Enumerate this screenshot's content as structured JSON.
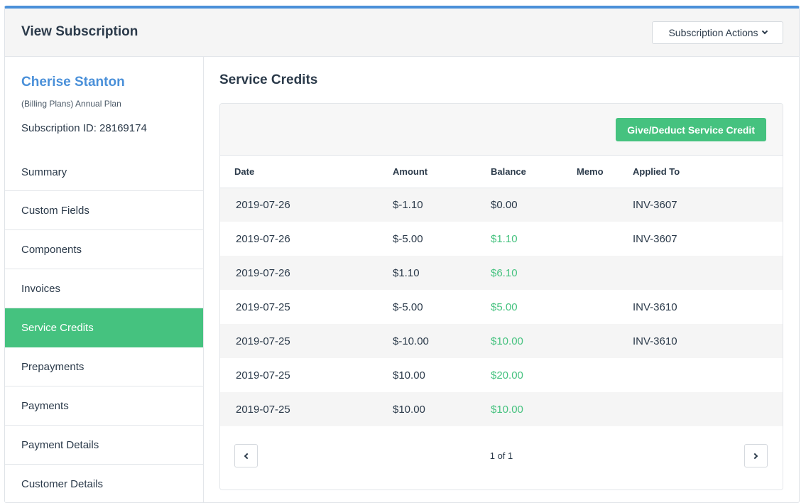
{
  "header": {
    "title": "View Subscription",
    "actions_label": "Subscription Actions"
  },
  "customer": {
    "name": "Cherise Stanton",
    "plan": "(Billing Plans) Annual Plan",
    "subscription_id": "Subscription ID: 28169174"
  },
  "nav": {
    "items": [
      {
        "label": "Summary"
      },
      {
        "label": "Custom Fields"
      },
      {
        "label": "Components"
      },
      {
        "label": "Invoices"
      },
      {
        "label": "Service Credits",
        "active": true
      },
      {
        "label": "Prepayments"
      },
      {
        "label": "Payments"
      },
      {
        "label": "Payment Details"
      },
      {
        "label": "Customer Details"
      }
    ]
  },
  "main": {
    "title": "Service Credits",
    "give_button": "Give/Deduct Service Credit",
    "columns": [
      "Date",
      "Amount",
      "Balance",
      "Memo",
      "Applied To"
    ],
    "rows": [
      {
        "date": "2019-07-26",
        "amount": "$-1.10",
        "balance": "$0.00",
        "memo": "",
        "applied_to": "INV-3607"
      },
      {
        "date": "2019-07-26",
        "amount": "$-5.00",
        "balance": "$1.10",
        "memo": "",
        "applied_to": "INV-3607"
      },
      {
        "date": "2019-07-26",
        "amount": "$1.10",
        "balance": "$6.10",
        "memo": "",
        "applied_to": ""
      },
      {
        "date": "2019-07-25",
        "amount": "$-5.00",
        "balance": "$5.00",
        "memo": "",
        "applied_to": "INV-3610"
      },
      {
        "date": "2019-07-25",
        "amount": "$-10.00",
        "balance": "$10.00",
        "memo": "",
        "applied_to": "INV-3610"
      },
      {
        "date": "2019-07-25",
        "amount": "$10.00",
        "balance": "$20.00",
        "memo": "",
        "applied_to": ""
      },
      {
        "date": "2019-07-25",
        "amount": "$10.00",
        "balance": "$10.00",
        "memo": "",
        "applied_to": ""
      }
    ],
    "pagination": "1 of 1"
  },
  "colors": {
    "accent_blue": "#4a90d9",
    "accent_green": "#45c27f"
  },
  "icons": {
    "actions": "chevron-down-icon",
    "prev": "chevron-left-icon",
    "next": "chevron-right-icon"
  }
}
